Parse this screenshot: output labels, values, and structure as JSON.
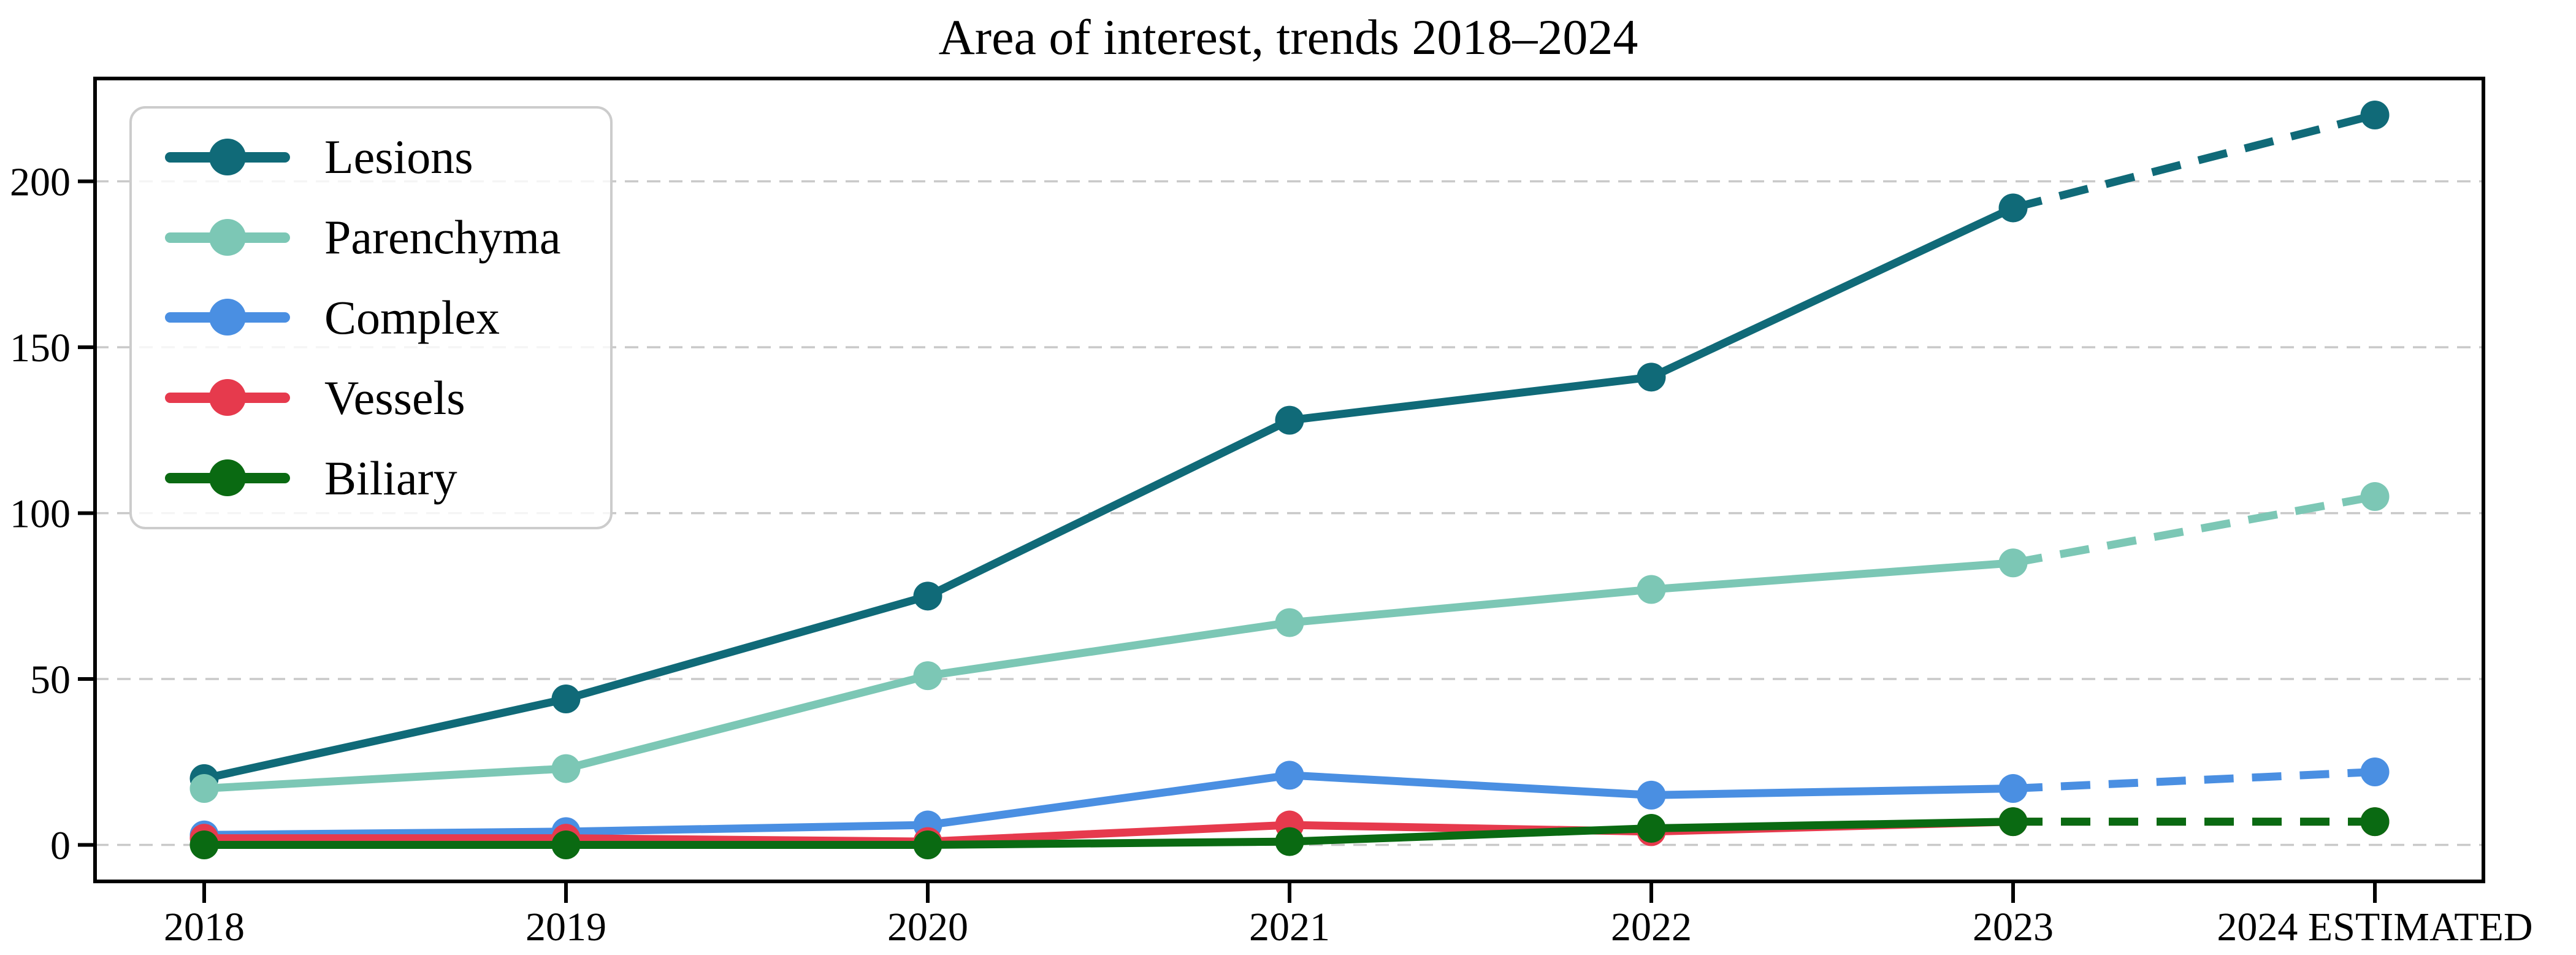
{
  "title": "Area of interest, trends 2018–2024",
  "colors": {
    "background": "#ffffff",
    "axis": "#000000",
    "grid": "#c9c9c9",
    "legend_border": "#cccccc",
    "text": "#000000"
  },
  "chart_data": {
    "type": "line",
    "title": "Area of interest, trends 2018–2024",
    "x_categories": [
      "2018",
      "2019",
      "2020",
      "2021",
      "2022",
      "2023",
      "2024 ESTIMATED"
    ],
    "series": [
      {
        "name": "Lesions",
        "color": "#106a78",
        "values": [
          20,
          44,
          75,
          128,
          141,
          192,
          220
        ],
        "last_segment_dashed": true
      },
      {
        "name": "Parenchyma",
        "color": "#7cc7b5",
        "values": [
          17,
          23,
          51,
          67,
          77,
          85,
          105
        ],
        "last_segment_dashed": true
      },
      {
        "name": "Complex",
        "color": "#4a8fe2",
        "values": [
          3,
          4,
          6,
          21,
          15,
          17,
          22
        ],
        "last_segment_dashed": true
      },
      {
        "name": "Vessels",
        "color": "#e63a4d",
        "values": [
          2,
          2,
          1,
          6,
          4,
          7,
          7
        ],
        "last_segment_dashed": true
      },
      {
        "name": "Biliary",
        "color": "#0a6a12",
        "values": [
          0,
          0,
          0,
          1,
          5,
          7,
          7
        ],
        "last_segment_dashed": true
      }
    ],
    "y_ticks": [
      0,
      50,
      100,
      150,
      200
    ],
    "ylim": [
      -11,
      231
    ],
    "xlabel": "",
    "ylabel": "",
    "grid": "horizontal-dashed",
    "legend_position": "upper-left"
  }
}
